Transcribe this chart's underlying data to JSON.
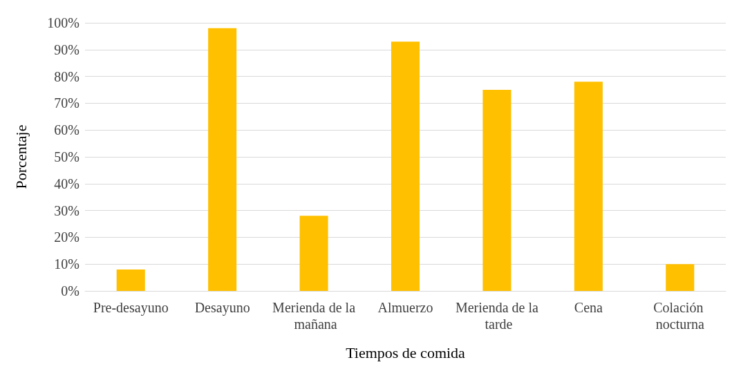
{
  "chart_data": {
    "type": "bar",
    "xlabel": "Tiempos de comida",
    "ylabel": "Porcentaje",
    "categories": [
      "Pre-desayuno",
      "Desayuno",
      "Merienda de la mañana",
      "Almuerzo",
      "Merienda de la tarde",
      "Cena",
      "Colación nocturna"
    ],
    "values": [
      8,
      98,
      28,
      93,
      75,
      78,
      10
    ],
    "color": "#ffc000",
    "ylim": [
      0,
      100
    ],
    "yticks": [
      {
        "value": 0,
        "label": "0%"
      },
      {
        "value": 10,
        "label": "10%"
      },
      {
        "value": 20,
        "label": "20%"
      },
      {
        "value": 30,
        "label": "30%"
      },
      {
        "value": 40,
        "label": "40%"
      },
      {
        "value": 50,
        "label": "50%"
      },
      {
        "value": 60,
        "label": "60%"
      },
      {
        "value": 70,
        "label": "70%"
      },
      {
        "value": 80,
        "label": "80%"
      },
      {
        "value": 90,
        "label": "90%"
      },
      {
        "value": 100,
        "label": "100%"
      }
    ],
    "grid": "y"
  }
}
